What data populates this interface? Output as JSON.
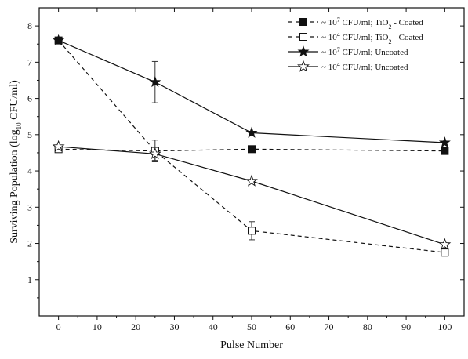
{
  "chart_data": {
    "type": "line",
    "title": "",
    "xlabel": "Pulse Number",
    "ylabel": "Surviving Population (log10 CFU/ml)",
    "ylabel_parts": {
      "pre": "Surviving Population (log",
      "sub": "10",
      "post": " CFU/ml)"
    },
    "xlim": [
      -5,
      105
    ],
    "ylim": [
      0,
      8.5
    ],
    "xticks": [
      0,
      10,
      20,
      30,
      40,
      50,
      60,
      70,
      80,
      90,
      100
    ],
    "yticks": [
      1,
      2,
      3,
      4,
      5,
      6,
      7,
      8
    ],
    "grid": false,
    "legend_position": "top-right",
    "series": [
      {
        "name": "~ 10^7 CFU/ml; TiO2 - Coated",
        "legend_parts": {
          "a": "~ 10",
          "exp": "7",
          "b": " CFU/ml; TiO",
          "sub": "2",
          "c": " - Coated"
        },
        "marker": "square-filled",
        "line": "dashed",
        "x": [
          0,
          25,
          50,
          100
        ],
        "y": [
          7.6,
          4.55,
          4.6,
          4.55
        ],
        "err": [
          0,
          0,
          0,
          0
        ]
      },
      {
        "name": "~ 10^4 CFU/ml; TiO2 - Coated",
        "legend_parts": {
          "a": "~ 10",
          "exp": "4",
          "b": " CFU/ml; TiO",
          "sub": "2",
          "c": " - Coated"
        },
        "marker": "square-open",
        "line": "dashed",
        "x": [
          0,
          25,
          50,
          100
        ],
        "y": [
          4.6,
          4.55,
          2.35,
          1.75
        ],
        "err": [
          0,
          0.3,
          0.25,
          0.1
        ]
      },
      {
        "name": "~ 10^7 CFU/ml; Uncoated",
        "legend_parts": {
          "a": "~ 10",
          "exp": "7",
          "b": " CFU/ml; Uncoated",
          "sub": "",
          "c": ""
        },
        "marker": "star-filled",
        "line": "solid",
        "x": [
          0,
          25,
          50,
          100
        ],
        "y": [
          7.6,
          6.45,
          5.05,
          4.78
        ],
        "err": [
          0,
          0.57,
          0,
          0
        ]
      },
      {
        "name": "~ 10^4 CFU/ml; Uncoated",
        "legend_parts": {
          "a": "~ 10",
          "exp": "4",
          "b": " CFU/ml; Uncoated",
          "sub": "",
          "c": ""
        },
        "marker": "star-open",
        "line": "solid",
        "x": [
          0,
          25,
          50,
          100
        ],
        "y": [
          4.67,
          4.47,
          3.72,
          1.97
        ],
        "err": [
          0,
          0.18,
          0,
          0
        ]
      }
    ]
  }
}
